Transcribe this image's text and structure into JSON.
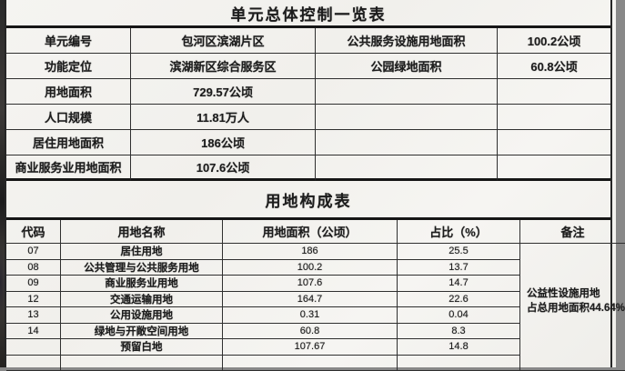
{
  "colors": {
    "border": "#262626",
    "thick_border": "#161616",
    "paper": "#f3f2ee",
    "ink": "#1c1c1c"
  },
  "table1": {
    "title": "单元总体控制一览表",
    "rows": [
      {
        "c1": "单元编号",
        "c2": "包河区滨湖片区",
        "c3": "公共服务设施用地面积",
        "c4": "100.2公顷"
      },
      {
        "c1": "功能定位",
        "c2": "滨湖新区综合服务区",
        "c3": "公园绿地面积",
        "c4": "60.8公顷"
      },
      {
        "c1": "用地面积",
        "c2": "729.57公顷",
        "c3": "",
        "c4": ""
      },
      {
        "c1": "人口规模",
        "c2": "11.81万人",
        "c3": "",
        "c4": ""
      },
      {
        "c1": "居住用地面积",
        "c2": "186公顷",
        "c3": "",
        "c4": ""
      },
      {
        "c1": "商业服务业用地面积",
        "c2": "107.6公顷",
        "c3": "",
        "c4": ""
      }
    ]
  },
  "table2": {
    "title": "用地构成表",
    "headers": [
      "代码",
      "用地名称",
      "用地面积（公顷）",
      "占比（%）",
      "备注"
    ],
    "rows": [
      {
        "code": "07",
        "name": "居住用地",
        "area": "186",
        "pct": "25.5"
      },
      {
        "code": "08",
        "name": "公共管理与公共服务用地",
        "area": "100.2",
        "pct": "13.7"
      },
      {
        "code": "09",
        "name": "商业服务业用地",
        "area": "107.6",
        "pct": "14.7"
      },
      {
        "code": "12",
        "name": "交通运输用地",
        "area": "164.7",
        "pct": "22.6"
      },
      {
        "code": "13",
        "name": "公用设施用地",
        "area": "0.31",
        "pct": "0.04"
      },
      {
        "code": "14",
        "name": "绿地与开敞空间用地",
        "area": "60.8",
        "pct": "8.3"
      },
      {
        "code": "",
        "name": "预留白地",
        "area": "107.67",
        "pct": "14.8"
      },
      {
        "code": "",
        "name": "",
        "area": "",
        "pct": ""
      }
    ],
    "remark": {
      "line1": "公益性设施用地",
      "line2": "占总用地面积44.64%"
    }
  }
}
